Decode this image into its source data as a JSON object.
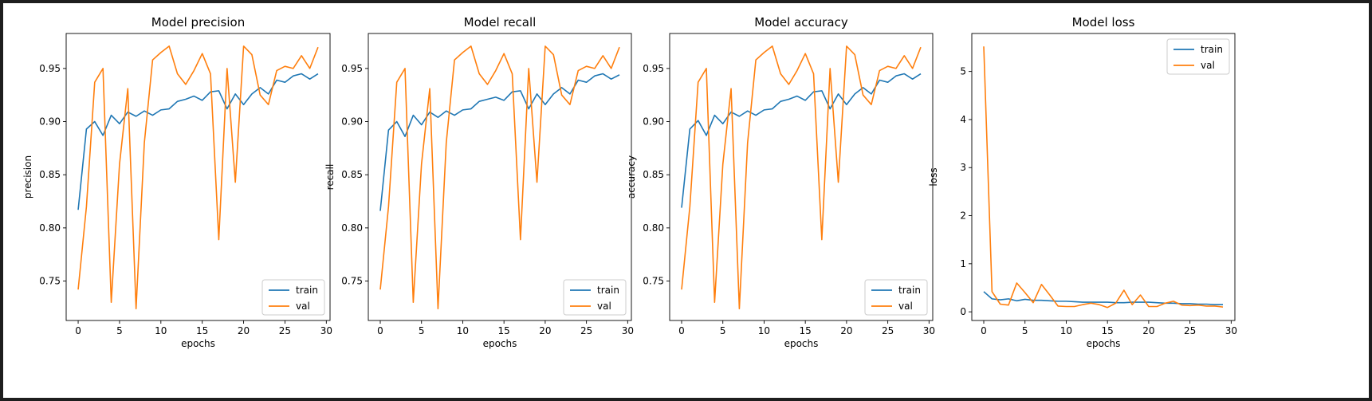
{
  "colors": {
    "train": "#1f77b4",
    "val": "#ff7f0e",
    "frame_bg": "#1e1e1e"
  },
  "chart_data": [
    {
      "type": "line",
      "title": "Model precision",
      "xlabel": "epochs",
      "ylabel": "precision",
      "xlim": [
        -1.45,
        30.45
      ],
      "ylim": [
        0.7129,
        0.9829
      ],
      "xticks": [
        0,
        5,
        10,
        15,
        20,
        25,
        30
      ],
      "yticks": [
        0.75,
        0.8,
        0.85,
        0.9,
        0.95
      ],
      "ytick_labels": [
        "0.75",
        "0.80",
        "0.85",
        "0.90",
        "0.95"
      ],
      "legend": "lower-right",
      "x": [
        0,
        1,
        2,
        3,
        4,
        5,
        6,
        7,
        8,
        9,
        10,
        11,
        12,
        13,
        14,
        15,
        16,
        17,
        18,
        19,
        20,
        21,
        22,
        23,
        24,
        25,
        26,
        27,
        28,
        29
      ],
      "series": [
        {
          "name": "train",
          "values": [
            0.817,
            0.893,
            0.9,
            0.887,
            0.906,
            0.898,
            0.909,
            0.905,
            0.91,
            0.906,
            0.911,
            0.912,
            0.919,
            0.921,
            0.924,
            0.92,
            0.928,
            0.929,
            0.912,
            0.926,
            0.916,
            0.926,
            0.932,
            0.926,
            0.939,
            0.937,
            0.943,
            0.945,
            0.94,
            0.945
          ]
        },
        {
          "name": "val",
          "values": [
            0.742,
            0.82,
            0.937,
            0.95,
            0.73,
            0.86,
            0.931,
            0.724,
            0.88,
            0.958,
            0.965,
            0.971,
            0.945,
            0.935,
            0.948,
            0.964,
            0.945,
            0.789,
            0.95,
            0.843,
            0.971,
            0.963,
            0.925,
            0.916,
            0.948,
            0.952,
            0.95,
            0.962,
            0.95,
            0.97
          ]
        }
      ]
    },
    {
      "type": "line",
      "title": "Model recall",
      "xlabel": "epochs",
      "ylabel": "recall",
      "xlim": [
        -1.45,
        30.45
      ],
      "ylim": [
        0.7129,
        0.9829
      ],
      "xticks": [
        0,
        5,
        10,
        15,
        20,
        25,
        30
      ],
      "yticks": [
        0.75,
        0.8,
        0.85,
        0.9,
        0.95
      ],
      "ytick_labels": [
        "0.75",
        "0.80",
        "0.85",
        "0.90",
        "0.95"
      ],
      "legend": "lower-right",
      "x": [
        0,
        1,
        2,
        3,
        4,
        5,
        6,
        7,
        8,
        9,
        10,
        11,
        12,
        13,
        14,
        15,
        16,
        17,
        18,
        19,
        20,
        21,
        22,
        23,
        24,
        25,
        26,
        27,
        28,
        29
      ],
      "series": [
        {
          "name": "train",
          "values": [
            0.816,
            0.892,
            0.9,
            0.886,
            0.906,
            0.897,
            0.909,
            0.904,
            0.91,
            0.906,
            0.911,
            0.912,
            0.919,
            0.921,
            0.923,
            0.92,
            0.928,
            0.929,
            0.912,
            0.926,
            0.916,
            0.926,
            0.932,
            0.926,
            0.939,
            0.937,
            0.943,
            0.945,
            0.94,
            0.944
          ]
        },
        {
          "name": "val",
          "values": [
            0.742,
            0.82,
            0.937,
            0.95,
            0.73,
            0.86,
            0.931,
            0.724,
            0.88,
            0.958,
            0.965,
            0.971,
            0.945,
            0.935,
            0.948,
            0.964,
            0.945,
            0.789,
            0.95,
            0.843,
            0.971,
            0.963,
            0.925,
            0.916,
            0.948,
            0.952,
            0.95,
            0.962,
            0.95,
            0.97
          ]
        }
      ]
    },
    {
      "type": "line",
      "title": "Model accuracy",
      "xlabel": "epochs",
      "ylabel": "accuracy",
      "xlim": [
        -1.45,
        30.45
      ],
      "ylim": [
        0.7129,
        0.9829
      ],
      "xticks": [
        0,
        5,
        10,
        15,
        20,
        25,
        30
      ],
      "yticks": [
        0.75,
        0.8,
        0.85,
        0.9,
        0.95
      ],
      "ytick_labels": [
        "0.75",
        "0.80",
        "0.85",
        "0.90",
        "0.95"
      ],
      "legend": "lower-right",
      "x": [
        0,
        1,
        2,
        3,
        4,
        5,
        6,
        7,
        8,
        9,
        10,
        11,
        12,
        13,
        14,
        15,
        16,
        17,
        18,
        19,
        20,
        21,
        22,
        23,
        24,
        25,
        26,
        27,
        28,
        29
      ],
      "series": [
        {
          "name": "train",
          "values": [
            0.819,
            0.893,
            0.901,
            0.887,
            0.906,
            0.898,
            0.909,
            0.905,
            0.91,
            0.906,
            0.911,
            0.912,
            0.919,
            0.921,
            0.924,
            0.92,
            0.928,
            0.929,
            0.912,
            0.926,
            0.916,
            0.926,
            0.932,
            0.926,
            0.939,
            0.937,
            0.943,
            0.945,
            0.94,
            0.945
          ]
        },
        {
          "name": "val",
          "values": [
            0.742,
            0.82,
            0.937,
            0.95,
            0.73,
            0.86,
            0.931,
            0.724,
            0.88,
            0.958,
            0.965,
            0.971,
            0.945,
            0.935,
            0.948,
            0.964,
            0.945,
            0.789,
            0.95,
            0.843,
            0.971,
            0.963,
            0.925,
            0.916,
            0.948,
            0.952,
            0.95,
            0.962,
            0.95,
            0.97
          ]
        }
      ]
    },
    {
      "type": "line",
      "title": "Model loss",
      "xlabel": "epochs",
      "ylabel": "loss",
      "xlim": [
        -1.45,
        30.45
      ],
      "ylim": [
        -0.18,
        5.79
      ],
      "xticks": [
        0,
        5,
        10,
        15,
        20,
        25,
        30
      ],
      "yticks": [
        0,
        1,
        2,
        3,
        4,
        5
      ],
      "ytick_labels": [
        "0",
        "1",
        "2",
        "3",
        "4",
        "5"
      ],
      "legend": "upper-right",
      "x": [
        0,
        1,
        2,
        3,
        4,
        5,
        6,
        7,
        8,
        9,
        10,
        11,
        12,
        13,
        14,
        15,
        16,
        17,
        18,
        19,
        20,
        21,
        22,
        23,
        24,
        25,
        26,
        27,
        28,
        29
      ],
      "series": [
        {
          "name": "train",
          "values": [
            0.42,
            0.27,
            0.25,
            0.27,
            0.23,
            0.26,
            0.24,
            0.24,
            0.23,
            0.22,
            0.22,
            0.21,
            0.2,
            0.2,
            0.2,
            0.2,
            0.19,
            0.19,
            0.2,
            0.2,
            0.2,
            0.19,
            0.18,
            0.18,
            0.17,
            0.17,
            0.16,
            0.16,
            0.15,
            0.15
          ]
        },
        {
          "name": "val",
          "values": [
            5.52,
            0.42,
            0.16,
            0.14,
            0.6,
            0.4,
            0.19,
            0.57,
            0.35,
            0.12,
            0.11,
            0.11,
            0.15,
            0.18,
            0.15,
            0.09,
            0.18,
            0.45,
            0.15,
            0.35,
            0.11,
            0.11,
            0.18,
            0.22,
            0.14,
            0.13,
            0.14,
            0.12,
            0.12,
            0.1
          ]
        }
      ]
    }
  ]
}
